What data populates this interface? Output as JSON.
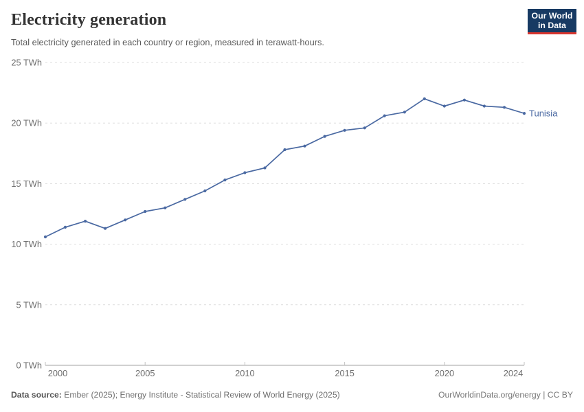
{
  "header": {
    "title": "Electricity generation",
    "subtitle": "Total electricity generated in each country or region, measured in terawatt-hours.",
    "logo": {
      "line1": "Our World",
      "line2": "in Data"
    }
  },
  "footer": {
    "source_label": "Data source:",
    "source_text": " Ember (2025); Energy Institute - Statistical Review of World Energy (2025)",
    "rights": "OurWorldinData.org/energy | CC BY"
  },
  "colors": {
    "series_blue": "#4a69a2",
    "gridline": "#dddddd",
    "axis_line": "#a1a1a1",
    "tick_mark": "#c2c2c2",
    "axis_label": "#6e6e6e",
    "logo_navy": "#173a63",
    "logo_red": "#d8352e"
  },
  "chart_data": {
    "type": "line",
    "title": "Electricity generation",
    "subtitle": "Total electricity generated in each country or region, measured in terawatt-hours.",
    "unit": "TWh",
    "xlabel": "",
    "ylabel": "TWh",
    "xlim": [
      2000,
      2024
    ],
    "ylim": [
      0,
      25
    ],
    "grid": "horizontal-dashed",
    "legend_position": "end-of-line",
    "x": [
      2000,
      2001,
      2002,
      2003,
      2004,
      2005,
      2006,
      2007,
      2008,
      2009,
      2010,
      2011,
      2012,
      2013,
      2014,
      2015,
      2016,
      2017,
      2018,
      2019,
      2020,
      2021,
      2022,
      2023,
      2024
    ],
    "series": [
      {
        "name": "Tunisia",
        "color": "#4a69a2",
        "values": [
          10.6,
          11.4,
          11.9,
          11.3,
          12.0,
          12.7,
          13.0,
          13.7,
          14.4,
          15.3,
          15.9,
          16.3,
          17.8,
          18.1,
          18.9,
          19.4,
          19.6,
          20.6,
          20.9,
          22.0,
          21.4,
          21.9,
          21.4,
          21.3,
          20.8
        ]
      }
    ],
    "yticks": [
      0,
      5,
      10,
      15,
      20,
      25
    ],
    "ytick_labels": [
      "0 TWh",
      "5 TWh",
      "10 TWh",
      "15 TWh",
      "20 TWh",
      "25 TWh"
    ],
    "xticks": [
      2000,
      2005,
      2010,
      2015,
      2020,
      2024
    ],
    "xtick_labels": [
      "2000",
      "2005",
      "2010",
      "2015",
      "2020",
      "2024"
    ]
  }
}
